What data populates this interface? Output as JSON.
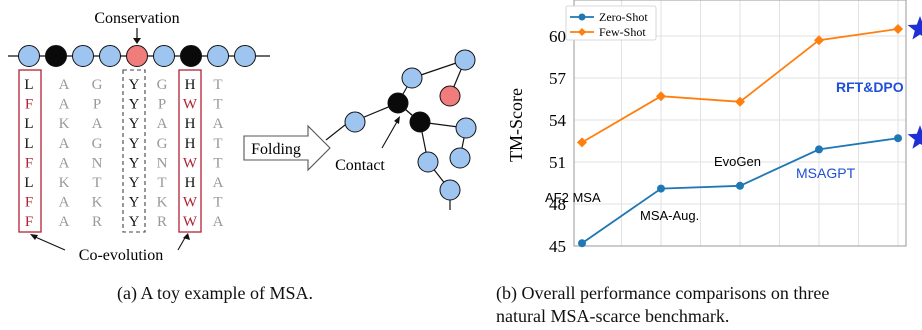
{
  "panel_a": {
    "conservation_label": "Conservation",
    "coevolution_label": "Co-evolution",
    "folding_label": "Folding",
    "contact_label": "Contact",
    "caption": "(a) A toy example of MSA.",
    "chain_colors": [
      "blue",
      "black",
      "blue",
      "blue",
      "pink",
      "blue",
      "black",
      "blue",
      "blue"
    ],
    "columns": [
      "LFLLFLFF",
      "AAKAAKAA",
      "GPAGNTKR",
      "YYYYYYYY",
      "GPAGNTKR",
      "HWHHWHWW",
      "TTATTATA"
    ],
    "column_colors": {
      "0": [
        "#111111",
        "#b22234",
        "#111111",
        "#111111",
        "#b22234",
        "#111111",
        "#b22234",
        "#b22234"
      ],
      "5": [
        "#111111",
        "#b22234",
        "#111111",
        "#111111",
        "#b22234",
        "#111111",
        "#b22234",
        "#b22234"
      ]
    },
    "colors": {
      "blue": "#9ec5f0",
      "black": "#0a0a0a",
      "pink": "#f07c7c",
      "red_box": "#b22234"
    }
  },
  "panel_b": {
    "caption_line1": "(b) Overall performance comparisons on three",
    "caption_line2": "natural MSA-scarce benchmark.",
    "annotations": [
      {
        "text": "AF2 MSA",
        "color": "#111111"
      },
      {
        "text": "MSA-Aug.",
        "color": "#111111"
      },
      {
        "text": "EvoGen",
        "color": "#111111"
      },
      {
        "text": "MSAGPT",
        "color": "#1f4fd6"
      },
      {
        "text": "RFT&DPO",
        "color": "#1f4fd6"
      }
    ]
  },
  "chart_data": {
    "type": "line",
    "ylabel": "TM-Score",
    "xlabel": "",
    "ylim": [
      45,
      62
    ],
    "yticks": [
      45,
      48,
      51,
      54,
      57,
      60
    ],
    "x": [
      1,
      2,
      3,
      4,
      5
    ],
    "grid": true,
    "legend": "top-left",
    "series": [
      {
        "name": "Zero-Shot",
        "values": [
          45.2,
          49.1,
          49.3,
          51.9,
          52.7
        ],
        "color": "#1f77b4",
        "marker": "circle",
        "last_marker": "star"
      },
      {
        "name": "Few-Shot",
        "values": [
          52.4,
          55.7,
          55.3,
          59.7,
          60.5
        ],
        "color": "#ff7f0e",
        "marker": "diamond",
        "last_marker": "star"
      }
    ],
    "star_color": "#1f2fd6"
  }
}
